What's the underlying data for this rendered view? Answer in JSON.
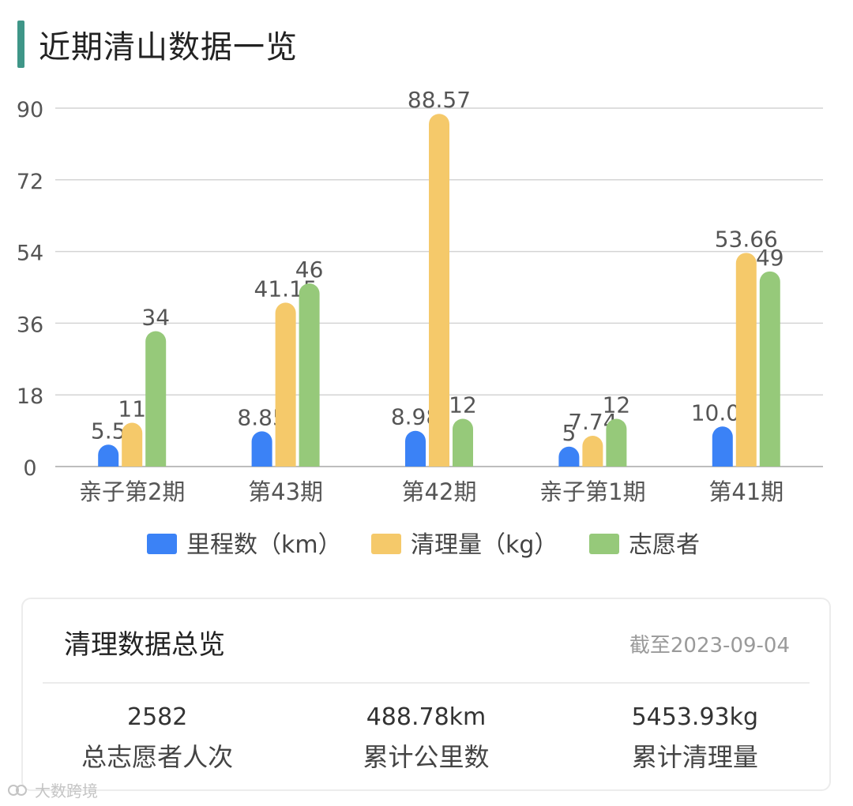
{
  "header": {
    "title": "近期清山数据一览",
    "accent_color": "#3f9688"
  },
  "chart_data": {
    "type": "bar",
    "categories": [
      "亲子第2期",
      "第43期",
      "第42期",
      "亲子第1期",
      "第41期"
    ],
    "series": [
      {
        "name": "里程数（km）",
        "color": "#3b82f6",
        "values": [
          5.5,
          8.85,
          8.98,
          5,
          10.05
        ]
      },
      {
        "name": "清理量（kg）",
        "color": "#f5c96a",
        "values": [
          11,
          41.15,
          88.57,
          7.74,
          53.66
        ]
      },
      {
        "name": "志愿者",
        "color": "#96c97a",
        "values": [
          34,
          46,
          12,
          12,
          49
        ]
      }
    ],
    "ylim": [
      0,
      90
    ],
    "yticks": [
      0,
      18,
      36,
      54,
      72,
      90
    ],
    "grid": true,
    "legend_position": "bottom"
  },
  "summary": {
    "title": "清理数据总览",
    "date": "截至2023-09-04",
    "stats": [
      {
        "value": "2582",
        "label": "总志愿者人次"
      },
      {
        "value": "488.78km",
        "label": "累计公里数"
      },
      {
        "value": "5453.93kg",
        "label": "累计清理量"
      }
    ]
  },
  "watermark": {
    "text": "大数跨境",
    "icon": "watermark-logo-icon"
  }
}
